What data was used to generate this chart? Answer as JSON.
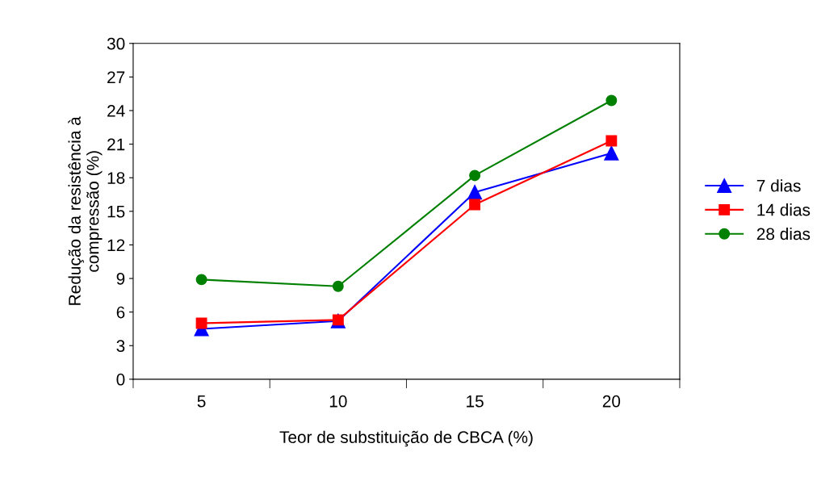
{
  "chart_data": {
    "type": "line",
    "xlabel": "Teor de substituição de CBCA (%)",
    "ylabel": "Redução da resistência à\ncompressão (%)",
    "categories": [
      "5",
      "10",
      "15",
      "20"
    ],
    "series": [
      {
        "name": "7 dias",
        "color": "#0000ff",
        "marker": "triangle",
        "values": [
          4.5,
          5.2,
          16.7,
          20.2
        ]
      },
      {
        "name": "14 dias",
        "color": "#ff0000",
        "marker": "square",
        "values": [
          5.0,
          5.3,
          15.6,
          21.3
        ]
      },
      {
        "name": "28 dias",
        "color": "#008000",
        "marker": "circle",
        "values": [
          8.9,
          8.3,
          18.2,
          24.9
        ]
      }
    ],
    "ylim": [
      0,
      30
    ],
    "yticks": [
      0,
      3,
      6,
      9,
      12,
      15,
      18,
      21,
      24,
      27,
      30
    ],
    "grid": false,
    "legend": "right",
    "line_style": "solid"
  }
}
